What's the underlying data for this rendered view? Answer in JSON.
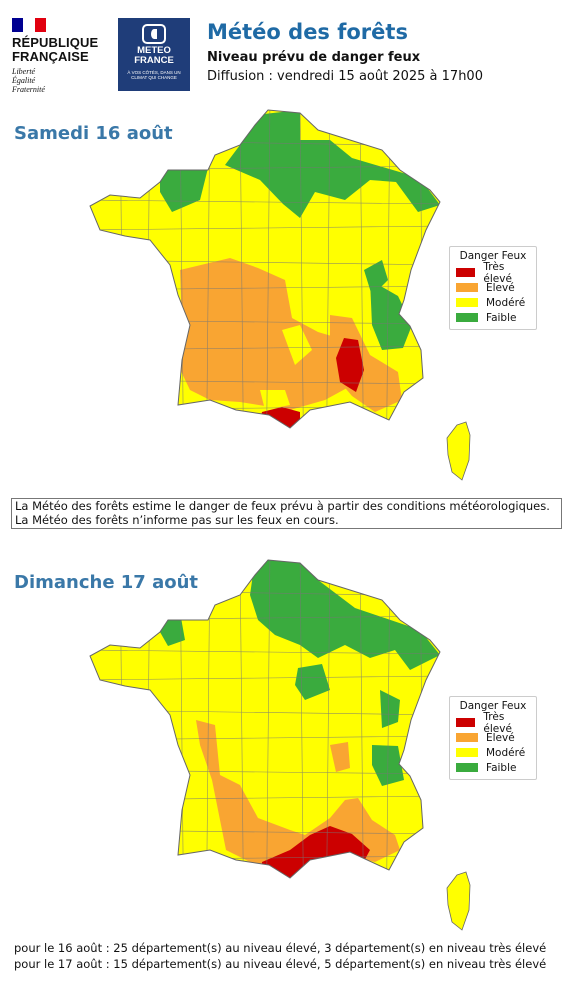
{
  "header": {
    "republique_line1": "RÉPUBLIQUE",
    "republique_line2": "FRANÇAISE",
    "motto_1": "Liberté",
    "motto_2": "Égalité",
    "motto_3": "Fraternité",
    "meteo_line1": "METEO",
    "meteo_line2": "FRANCE",
    "meteo_tagline": "À VOS CÔTÉS, DANS UN CLIMAT QUI CHANGE",
    "title": "Météo des forêts",
    "subtitle": "Niveau prévu de danger feux",
    "diffusion": "Diffusion : vendredi 15 août 2025 à 17h00"
  },
  "colors": {
    "tres_eleve": "#cc0000",
    "eleve": "#f9a532",
    "modere": "#ffff00",
    "faible": "#3aab3e",
    "title_blue": "#1f6aa5",
    "day_blue": "#3a78a8",
    "flag_blue": "#000091",
    "flag_red": "#e1000f",
    "meteo_navy": "#1f3d79"
  },
  "legend": {
    "title": "Danger Feux",
    "items": [
      {
        "label": "Très élevé",
        "level": "tres_eleve"
      },
      {
        "label": "Elevé",
        "level": "eleve"
      },
      {
        "label": "Modéré",
        "level": "modere"
      },
      {
        "label": "Faible",
        "level": "faible"
      }
    ]
  },
  "maps": [
    {
      "day": "Samedi 16 août",
      "eleve_count": 25,
      "tres_eleve_count": 3
    },
    {
      "day": "Dimanche 17 août",
      "eleve_count": 15,
      "tres_eleve_count": 5
    }
  ],
  "info": {
    "line1": "La Météo des forêts estime le danger de feux prévu à partir des conditions météorologiques.",
    "line2": "La Météo des forêts n’informe pas sur les feux en cours."
  },
  "footer": {
    "line1": "pour le 16 août : 25 département(s) au niveau élevé, 3 département(s) en niveau très élevé",
    "line2": "pour le 17 août : 15 département(s) au niveau élevé, 5 département(s) en niveau très élevé"
  }
}
